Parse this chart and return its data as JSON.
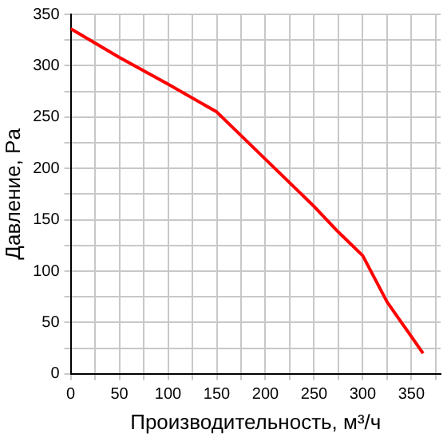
{
  "chart_data": {
    "type": "line",
    "xlabel": "Производительность, м³/ч",
    "ylabel": "Давление, Pa",
    "x": [
      0,
      50,
      100,
      150,
      200,
      250,
      275,
      300,
      325,
      362
    ],
    "series": [
      {
        "color": "#ff0000",
        "values": [
          336,
          308,
          282,
          255,
          209,
          163,
          138,
          115,
          70,
          20
        ]
      }
    ],
    "xlim": [
      0,
      380
    ],
    "xticks": [
      0,
      {
        "value": 25,
        "label": null
      },
      50,
      {
        "value": 75,
        "label": null
      },
      100,
      {
        "value": 125,
        "label": null
      },
      150,
      {
        "value": 175,
        "label": null
      },
      200,
      {
        "value": 225,
        "label": null
      },
      250,
      {
        "value": 275,
        "label": null
      },
      300,
      {
        "value": 325,
        "label": null
      },
      350,
      {
        "value": 375,
        "label": null
      }
    ],
    "ylim": [
      0,
      350
    ],
    "yticks": [
      0,
      {
        "value": 25,
        "label": null
      },
      50,
      {
        "value": 75,
        "label": null
      },
      100,
      {
        "value": 125,
        "label": null
      },
      150,
      {
        "value": 175,
        "label": null
      },
      200,
      {
        "value": 225,
        "label": null
      },
      250,
      {
        "value": 275,
        "label": null
      },
      300,
      {
        "value": 325,
        "label": null
      },
      350
    ],
    "grid": true,
    "marker": "none",
    "line_style": "solid",
    "legend": false
  }
}
